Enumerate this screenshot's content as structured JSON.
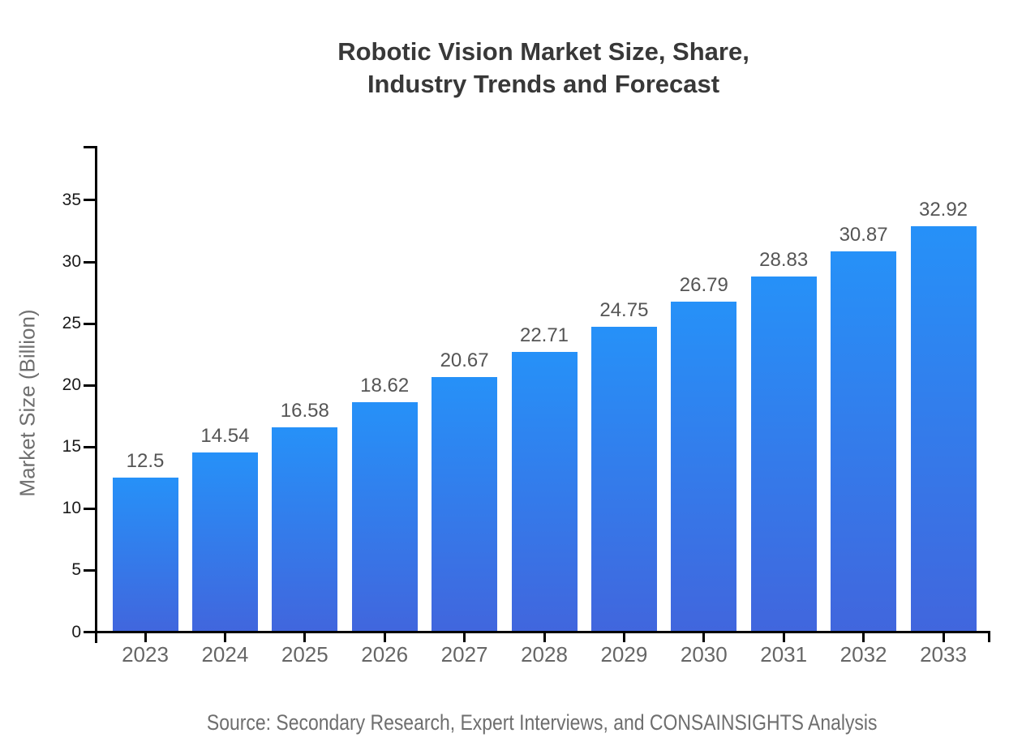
{
  "title": {
    "line1": "Robotic Vision Market Size, Share,",
    "line2": "Industry Trends and Forecast"
  },
  "source": "Source: Secondary Research, Expert Interviews, and CONSAINSIGHTS Analysis",
  "chart_data": {
    "type": "bar",
    "title": "Robotic Vision Market Size, Share, Industry Trends and Forecast",
    "categories": [
      "2023",
      "2024",
      "2025",
      "2026",
      "2027",
      "2028",
      "2029",
      "2030",
      "2031",
      "2032",
      "2033"
    ],
    "values": [
      12.5,
      14.54,
      16.58,
      18.62,
      20.67,
      22.71,
      24.75,
      26.79,
      28.83,
      30.87,
      32.92
    ],
    "value_labels": [
      "12.5",
      "14.54",
      "16.58",
      "18.62",
      "20.67",
      "22.71",
      "24.75",
      "26.79",
      "28.83",
      "30.87",
      "32.92"
    ],
    "xlabel": "",
    "ylabel": "Market Size (Billion)",
    "yticks": [
      0,
      5,
      10,
      15,
      20,
      25,
      30,
      35
    ],
    "ylim": [
      0,
      39.4
    ],
    "grid": false,
    "legend": null,
    "colors": {
      "bar_gradient_top": "#2691f8",
      "bar_gradient_bottom": "#4166dd",
      "axis": "#000000",
      "title_text": "#383838",
      "value_label_text": "#555555",
      "x_tick_text": "#666666",
      "y_tick_text": "#1a1a1a",
      "axis_label_text": "#6e6e6e",
      "source_text": "#6e6e6e",
      "background": "#ffffff"
    }
  }
}
